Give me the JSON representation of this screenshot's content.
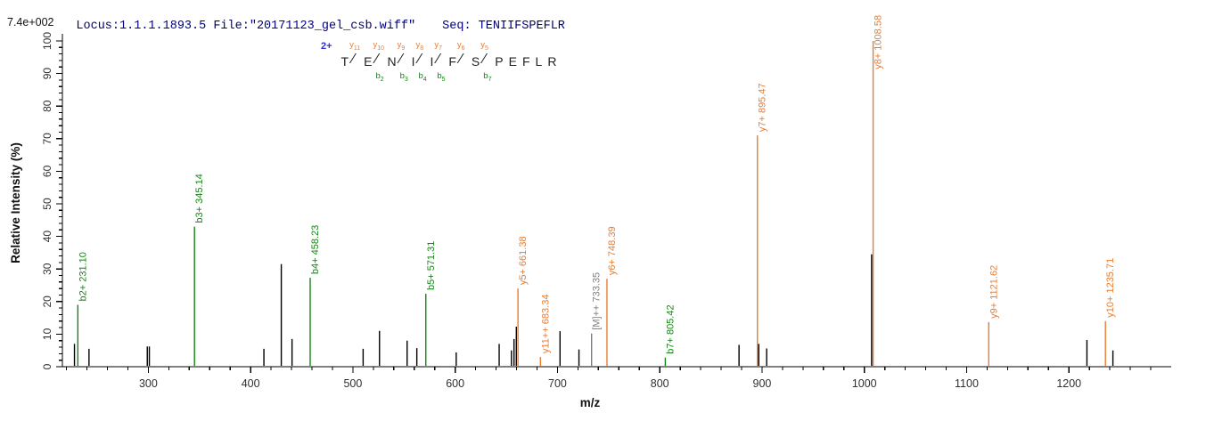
{
  "header": {
    "locus_file": "Locus:1.1.1.1893.5 File:\"20171123_gel_csb.wiff\"",
    "seq": "Seq: TENIIFSPEFLR",
    "base_peak_intensity": "7.4e+002"
  },
  "colors": {
    "y_ion": "#e87d32",
    "b_ion": "#148514",
    "precursor": "#808080",
    "unassigned": "#000000",
    "header_text": "#000080",
    "charge_label": "#3030cc",
    "axis": "#000000",
    "tick_label": "#303030"
  },
  "annotation": {
    "charge": "2+",
    "residues": [
      "T",
      "E",
      "N",
      "I",
      "I",
      "F",
      "S",
      "P",
      "E",
      "F",
      "L",
      "R"
    ],
    "junctions": [
      {
        "after": 0,
        "y": "y11",
        "b": null
      },
      {
        "after": 1,
        "y": "y10",
        "b": "b2"
      },
      {
        "after": 2,
        "y": "y9",
        "b": "b3"
      },
      {
        "after": 3,
        "y": "y8",
        "b": "b4"
      },
      {
        "after": 4,
        "y": "y7",
        "b": "b5"
      },
      {
        "after": 5,
        "y": "y6",
        "b": null
      },
      {
        "after": 6,
        "y": "y5",
        "b": "b7"
      }
    ]
  },
  "chart_data": {
    "type": "bar",
    "subtype": "centroided-ms2-spectrum",
    "title": "",
    "xlabel": "m/z",
    "ylabel": "Relative Intensity (%)",
    "xlim": [
      216,
      1300
    ],
    "ylim": [
      0,
      100
    ],
    "x_major_ticks": [
      300,
      400,
      500,
      600,
      700,
      800,
      900,
      1000,
      1100,
      1200
    ],
    "x_minor_step": 20,
    "y_major_step": 10,
    "y_minor_step": 2,
    "legend_position": "none",
    "grid": false,
    "peaks": [
      {
        "mz": 227.8,
        "intensity": 7.0,
        "series": "unassigned",
        "label": null
      },
      {
        "mz": 231.1,
        "intensity": 19.0,
        "series": "b",
        "label": "b2+ 231.10"
      },
      {
        "mz": 242.0,
        "intensity": 5.5,
        "series": "unassigned",
        "label": null
      },
      {
        "mz": 299.0,
        "intensity": 6.2,
        "series": "unassigned",
        "label": null
      },
      {
        "mz": 301.0,
        "intensity": 6.2,
        "series": "unassigned",
        "label": null
      },
      {
        "mz": 345.14,
        "intensity": 43.0,
        "series": "b",
        "label": "b3+ 345.14"
      },
      {
        "mz": 413.0,
        "intensity": 5.5,
        "series": "unassigned",
        "label": null
      },
      {
        "mz": 430.0,
        "intensity": 31.5,
        "series": "unassigned",
        "label": null
      },
      {
        "mz": 440.5,
        "intensity": 8.5,
        "series": "unassigned",
        "label": null
      },
      {
        "mz": 458.23,
        "intensity": 27.3,
        "series": "b",
        "label": "b4+ 458.23"
      },
      {
        "mz": 510.0,
        "intensity": 5.5,
        "series": "unassigned",
        "label": null
      },
      {
        "mz": 526.0,
        "intensity": 11.0,
        "series": "unassigned",
        "label": null
      },
      {
        "mz": 553.0,
        "intensity": 8.0,
        "series": "unassigned",
        "label": null
      },
      {
        "mz": 562.5,
        "intensity": 5.7,
        "series": "unassigned",
        "label": null
      },
      {
        "mz": 571.31,
        "intensity": 22.4,
        "series": "b",
        "label": "b5+ 571.31"
      },
      {
        "mz": 601.0,
        "intensity": 4.4,
        "series": "unassigned",
        "label": null
      },
      {
        "mz": 643.0,
        "intensity": 7.0,
        "series": "unassigned",
        "label": null
      },
      {
        "mz": 655.0,
        "intensity": 5.0,
        "series": "unassigned",
        "label": null
      },
      {
        "mz": 657.5,
        "intensity": 8.5,
        "series": "unassigned",
        "label": null
      },
      {
        "mz": 659.8,
        "intensity": 12.3,
        "series": "unassigned",
        "label": null
      },
      {
        "mz": 661.38,
        "intensity": 24.0,
        "series": "y",
        "label": "y5+ 661.38"
      },
      {
        "mz": 683.34,
        "intensity": 3.0,
        "series": "y",
        "label": "y11++ 683.34"
      },
      {
        "mz": 702.5,
        "intensity": 10.9,
        "series": "unassigned",
        "label": null
      },
      {
        "mz": 721.0,
        "intensity": 5.3,
        "series": "unassigned",
        "label": null
      },
      {
        "mz": 733.35,
        "intensity": 10.2,
        "series": "precursor",
        "label": "[M]++ 733.35"
      },
      {
        "mz": 748.39,
        "intensity": 27.0,
        "series": "y",
        "label": "y6+ 748.39"
      },
      {
        "mz": 805.42,
        "intensity": 2.8,
        "series": "b",
        "label": "b7+ 805.42"
      },
      {
        "mz": 877.5,
        "intensity": 6.7,
        "series": "unassigned",
        "label": null
      },
      {
        "mz": 895.47,
        "intensity": 71.0,
        "series": "y",
        "label": "y7+ 895.47"
      },
      {
        "mz": 896.8,
        "intensity": 7.0,
        "series": "unassigned",
        "label": null
      },
      {
        "mz": 904.5,
        "intensity": 5.6,
        "series": "unassigned",
        "label": null
      },
      {
        "mz": 1007.1,
        "intensity": 34.5,
        "series": "unassigned",
        "label": null
      },
      {
        "mz": 1008.58,
        "intensity": 100.0,
        "series": "y",
        "label": "y8+ 1008.58"
      },
      {
        "mz": 1121.62,
        "intensity": 13.7,
        "series": "y",
        "label": "y9+ 1121.62"
      },
      {
        "mz": 1217.6,
        "intensity": 8.2,
        "series": "unassigned",
        "label": null
      },
      {
        "mz": 1235.71,
        "intensity": 14.0,
        "series": "y",
        "label": "y10+ 1235.71"
      },
      {
        "mz": 1243.0,
        "intensity": 5.0,
        "series": "unassigned",
        "label": null
      }
    ]
  }
}
